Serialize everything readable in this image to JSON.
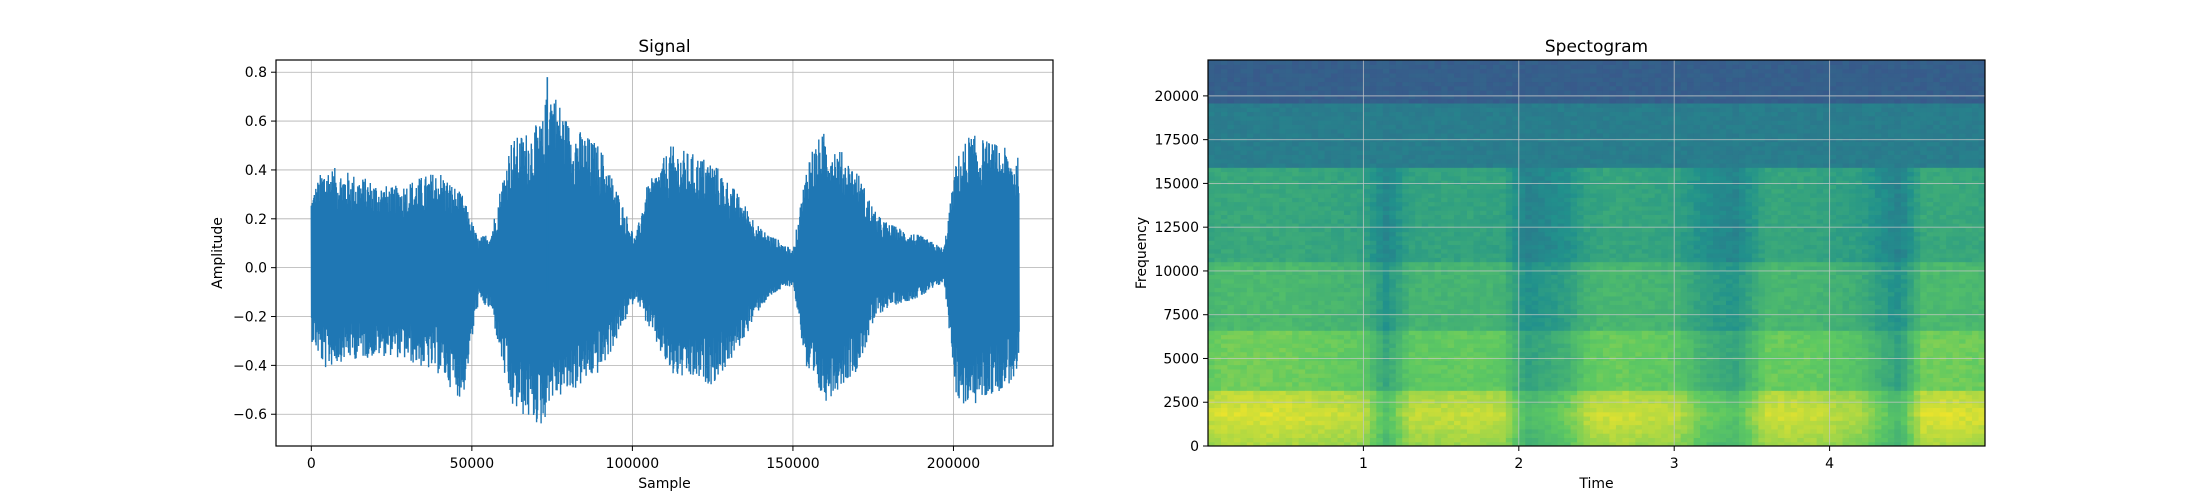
{
  "chart_data": [
    {
      "type": "line",
      "title": "Signal",
      "xlabel": "Sample",
      "ylabel": "Amplitude",
      "xlim": [
        -11000,
        231000
      ],
      "ylim": [
        -0.73,
        0.85
      ],
      "xticks": [
        0,
        50000,
        100000,
        150000,
        200000
      ],
      "yticks": [
        -0.6,
        -0.4,
        -0.2,
        0.0,
        0.2,
        0.4,
        0.6,
        0.8
      ],
      "xtick_labels": [
        "0",
        "50000",
        "100000",
        "150000",
        "200000"
      ],
      "ytick_labels": [
        "−0.6",
        "−0.4",
        "−0.2",
        "0.0",
        "0.2",
        "0.4",
        "0.6",
        "0.8"
      ],
      "grid": true,
      "series": [
        {
          "color": "#1f77b4",
          "n_samples": 220500,
          "envelope": {
            "x": [
              0,
              4000,
              10000,
              25000,
              40000,
              47000,
              52000,
              56000,
              62000,
              72000,
              74000,
              80000,
              90000,
              95000,
              101000,
              104000,
              112000,
              125000,
              132000,
              140000,
              145000,
              150000,
              155000,
              160000,
              170000,
              176000,
              180000,
              190000,
              197000,
              201000,
              205000,
              215000,
              220500
            ],
            "upper": [
              0.3,
              0.42,
              0.4,
              0.33,
              0.4,
              0.3,
              0.12,
              0.15,
              0.52,
              0.6,
              0.78,
              0.6,
              0.5,
              0.33,
              0.12,
              0.32,
              0.5,
              0.44,
              0.32,
              0.16,
              0.12,
              0.07,
              0.48,
              0.56,
              0.4,
              0.22,
              0.18,
              0.13,
              0.08,
              0.45,
              0.55,
              0.5,
              0.45
            ],
            "lower": [
              -0.3,
              -0.42,
              -0.38,
              -0.36,
              -0.44,
              -0.55,
              -0.14,
              -0.18,
              -0.58,
              -0.66,
              -0.55,
              -0.52,
              -0.43,
              -0.3,
              -0.12,
              -0.22,
              -0.45,
              -0.48,
              -0.36,
              -0.16,
              -0.1,
              -0.07,
              -0.5,
              -0.55,
              -0.42,
              -0.2,
              -0.16,
              -0.12,
              -0.06,
              -0.55,
              -0.58,
              -0.5,
              -0.45
            ]
          }
        }
      ]
    },
    {
      "type": "heatmap",
      "title": "Spectogram",
      "xlabel": "Time",
      "ylabel": "Frequency",
      "xlim": [
        0,
        5.0
      ],
      "ylim": [
        0,
        22050
      ],
      "xticks": [
        1,
        2,
        3,
        4
      ],
      "yticks": [
        0,
        2500,
        5000,
        7500,
        10000,
        12500,
        15000,
        17500,
        20000
      ],
      "xtick_labels": [
        "1",
        "2",
        "3",
        "4"
      ],
      "ytick_labels": [
        "0",
        "2500",
        "5000",
        "7500",
        "10000",
        "12500",
        "15000",
        "17500",
        "20000"
      ],
      "grid": true,
      "colormap": "viridis",
      "energy_by_time": {
        "t": [
          0,
          0.1,
          0.5,
          1.0,
          1.15,
          1.3,
          1.7,
          1.9,
          2.05,
          2.3,
          2.45,
          2.6,
          3.0,
          3.2,
          3.4,
          3.6,
          3.9,
          4.2,
          4.45,
          4.6,
          4.8,
          5.0
        ],
        "level": [
          0.62,
          0.66,
          0.66,
          0.6,
          0.34,
          0.6,
          0.62,
          0.6,
          0.3,
          0.42,
          0.6,
          0.64,
          0.6,
          0.42,
          0.34,
          0.64,
          0.62,
          0.55,
          0.3,
          0.66,
          0.66,
          0.64
        ]
      }
    }
  ]
}
